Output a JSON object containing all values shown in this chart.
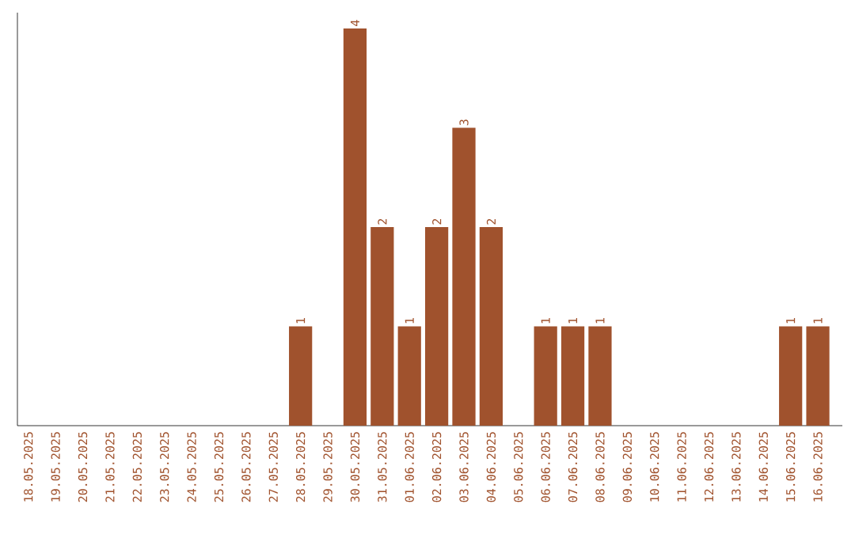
{
  "chart_data": {
    "type": "bar",
    "color": "#a0522d",
    "categories": [
      "18.05.2025",
      "19.05.2025",
      "20.05.2025",
      "21.05.2025",
      "22.05.2025",
      "23.05.2025",
      "24.05.2025",
      "25.05.2025",
      "26.05.2025",
      "27.05.2025",
      "28.05.2025",
      "29.05.2025",
      "30.05.2025",
      "31.05.2025",
      "01.06.2025",
      "02.06.2025",
      "03.06.2025",
      "04.06.2025",
      "05.06.2025",
      "06.06.2025",
      "07.06.2025",
      "08.06.2025",
      "09.06.2025",
      "10.06.2025",
      "11.06.2025",
      "12.06.2025",
      "13.06.2025",
      "14.06.2025",
      "15.06.2025",
      "16.06.2025"
    ],
    "values": [
      0,
      0,
      0,
      0,
      0,
      0,
      0,
      0,
      0,
      0,
      1,
      0,
      4,
      2,
      1,
      2,
      3,
      2,
      0,
      1,
      1,
      1,
      0,
      0,
      0,
      0,
      0,
      0,
      1,
      1
    ],
    "value_labels": [
      null,
      null,
      null,
      null,
      null,
      null,
      null,
      null,
      null,
      null,
      "1",
      null,
      "4",
      "2",
      "1",
      "2",
      "3",
      "2",
      null,
      "1",
      "1",
      "1",
      null,
      null,
      null,
      null,
      null,
      null,
      "1",
      "1"
    ]
  }
}
